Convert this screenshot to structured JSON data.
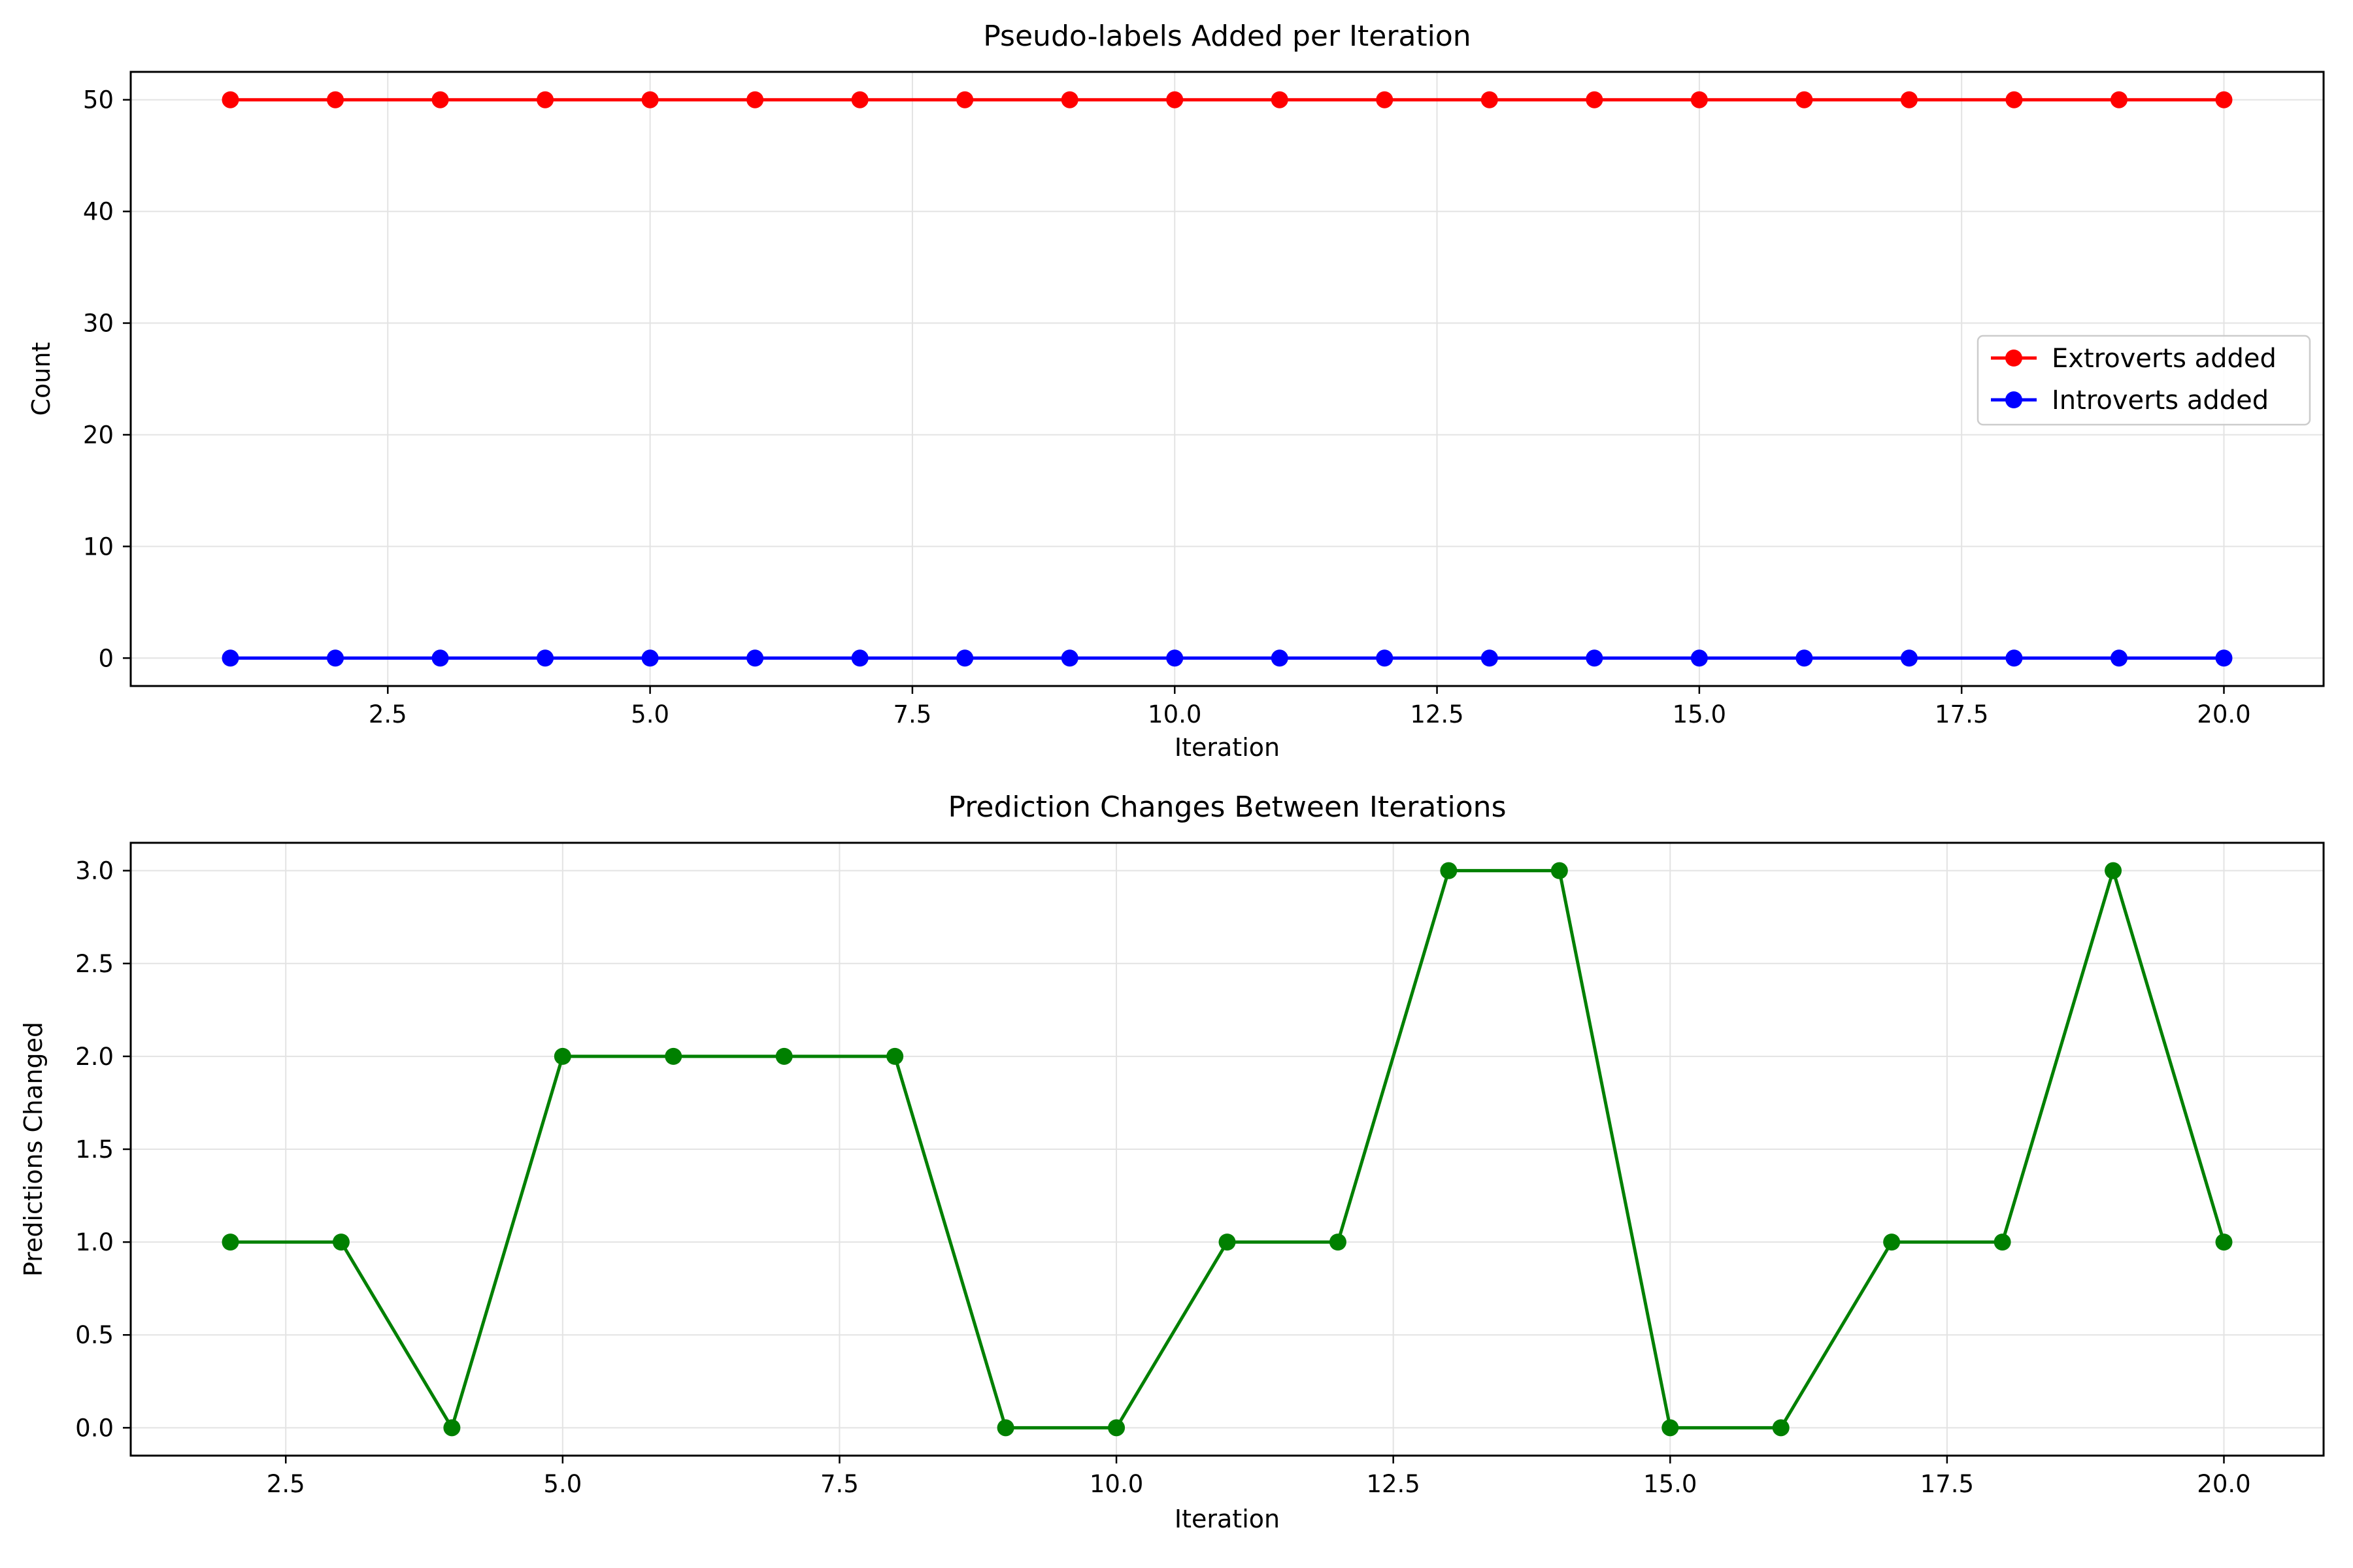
{
  "chart_data": [
    {
      "type": "line",
      "title": "Pseudo-labels Added per Iteration",
      "xlabel": "Iteration",
      "ylabel": "Count",
      "xlim": [
        0.05,
        20.95
      ],
      "ylim": [
        -2.5,
        52.5
      ],
      "xticks": [
        2.5,
        5.0,
        7.5,
        10.0,
        12.5,
        15.0,
        17.5,
        20.0
      ],
      "xtick_labels": [
        "2.5",
        "5.0",
        "7.5",
        "10.0",
        "12.5",
        "15.0",
        "17.5",
        "20.0"
      ],
      "yticks": [
        0,
        10,
        20,
        30,
        40,
        50
      ],
      "ytick_labels": [
        "0",
        "10",
        "20",
        "30",
        "40",
        "50"
      ],
      "grid": true,
      "legend_position": "center-right",
      "x": [
        1,
        2,
        3,
        4,
        5,
        6,
        7,
        8,
        9,
        10,
        11,
        12,
        13,
        14,
        15,
        16,
        17,
        18,
        19,
        20
      ],
      "series": [
        {
          "name": "Extroverts added",
          "color": "#ff0000",
          "values": [
            50,
            50,
            50,
            50,
            50,
            50,
            50,
            50,
            50,
            50,
            50,
            50,
            50,
            50,
            50,
            50,
            50,
            50,
            50,
            50
          ]
        },
        {
          "name": "Introverts added",
          "color": "#0000ff",
          "values": [
            0,
            0,
            0,
            0,
            0,
            0,
            0,
            0,
            0,
            0,
            0,
            0,
            0,
            0,
            0,
            0,
            0,
            0,
            0,
            0
          ]
        }
      ]
    },
    {
      "type": "line",
      "title": "Prediction Changes Between Iterations",
      "xlabel": "Iteration",
      "ylabel": "Predictions Changed",
      "xlim": [
        1.1,
        20.9
      ],
      "ylim": [
        -0.15,
        3.15
      ],
      "xticks": [
        2.5,
        5.0,
        7.5,
        10.0,
        12.5,
        15.0,
        17.5,
        20.0
      ],
      "xtick_labels": [
        "2.5",
        "5.0",
        "7.5",
        "10.0",
        "12.5",
        "15.0",
        "17.5",
        "20.0"
      ],
      "yticks": [
        0.0,
        0.5,
        1.0,
        1.5,
        2.0,
        2.5,
        3.0
      ],
      "ytick_labels": [
        "0.0",
        "0.5",
        "1.0",
        "1.5",
        "2.0",
        "2.5",
        "3.0"
      ],
      "grid": true,
      "x": [
        2,
        3,
        4,
        5,
        6,
        7,
        8,
        9,
        10,
        11,
        12,
        13,
        14,
        15,
        16,
        17,
        18,
        19,
        20
      ],
      "series": [
        {
          "color": "#008000",
          "values": [
            1,
            1,
            0,
            2,
            2,
            2,
            2,
            0,
            0,
            1,
            1,
            3,
            3,
            0,
            0,
            1,
            1,
            3,
            1
          ]
        }
      ]
    }
  ]
}
